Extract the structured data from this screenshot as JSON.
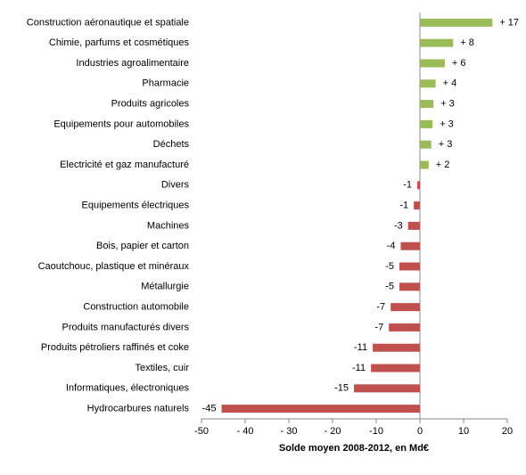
{
  "chart_data": {
    "type": "hbar",
    "x_label": "Solde moyen 2008-2012, en Md€",
    "categories": [
      "Construction aéronautique et spatiale",
      "Chimie, parfums et cosmétiques",
      "Industries agroalimentaire",
      "Pharmacie",
      "Produits agricoles",
      "Equipements pour automobiles",
      "Déchets",
      "Electricité et gaz manufacturé",
      "Divers",
      "Equipements électriques",
      "Machines",
      "Bois, papier et carton",
      "Caoutchouc, plastique et minéraux",
      "Métallurgie",
      "Construction automobile",
      "Produits manufacturés divers",
      "Produits pétroliers raffinés et coke",
      "Textiles, cuir",
      "Informatiques, électroniques",
      "Hydrocarbures naturels"
    ],
    "values": [
      16.6,
      7.6,
      5.7,
      3.6,
      3.1,
      2.9,
      2.6,
      2.0,
      -0.6,
      -1.4,
      -2.7,
      -4.4,
      -4.7,
      -4.7,
      -6.7,
      -7.1,
      -10.8,
      -11.2,
      -15.1,
      -45.4
    ],
    "value_labels": [
      "+ 17",
      "+ 8",
      "+ 6",
      "+ 4",
      "+ 3",
      "+ 3",
      "+ 3",
      "+ 2",
      "-1",
      "-1",
      "-3",
      "-4",
      "-5",
      "-5",
      "-7",
      "-7",
      "-11",
      "-11",
      "-15",
      "-45"
    ],
    "colors": {
      "positive": "#9bbb59",
      "negative": "#c0504d"
    },
    "xlim": [
      -50,
      20
    ],
    "xticks": [
      -50,
      {
        "value": -40,
        "label": "- 40"
      },
      {
        "value": -30,
        "label": "- 30"
      },
      {
        "value": -20,
        "label": "- 20"
      },
      -10,
      0,
      10,
      20
    ]
  }
}
